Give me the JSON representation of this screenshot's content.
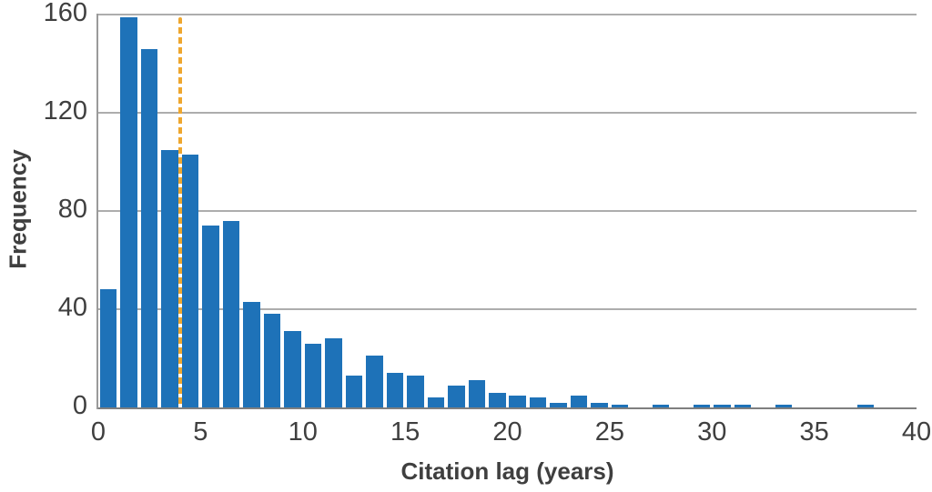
{
  "figure": {
    "bar_color": "#1e72b8",
    "reference_line_color": "#efa72f",
    "gridline_color": "#adadad",
    "axis_line_color": "#7f7f7f",
    "spine_color": "#9a9a9a",
    "text_color": "#3f3f3f",
    "background_color": "#ffffff"
  },
  "chart_data": {
    "type": "bar",
    "subtype": "histogram",
    "title": "",
    "xlabel": "Citation lag (years)",
    "ylabel": "Frequency",
    "xlim": [
      0,
      40
    ],
    "ylim": [
      0,
      160
    ],
    "bin_width": 1,
    "bin_start": 0,
    "values": [
      48,
      159,
      146,
      105,
      103,
      74,
      76,
      43,
      38,
      31,
      26,
      28,
      13,
      21,
      14,
      13,
      4,
      9,
      11,
      6,
      5,
      4,
      2,
      5,
      2,
      1,
      0,
      1,
      0,
      1,
      1,
      1,
      0,
      1,
      0,
      0,
      0,
      1,
      0,
      0
    ],
    "x_ticks": [
      0,
      5,
      10,
      15,
      20,
      25,
      30,
      35,
      40
    ],
    "x_tick_labels": [
      "0",
      "5",
      "10",
      "15",
      "20",
      "25",
      "30",
      "35",
      "40"
    ],
    "y_ticks": [
      0,
      40,
      80,
      120,
      160
    ],
    "y_tick_labels": [
      "0",
      "40",
      "80",
      "120",
      "160"
    ],
    "grid": "horizontal",
    "legend": "none",
    "reference_line": {
      "x": 4,
      "style": "dashed",
      "orientation": "vertical"
    }
  }
}
